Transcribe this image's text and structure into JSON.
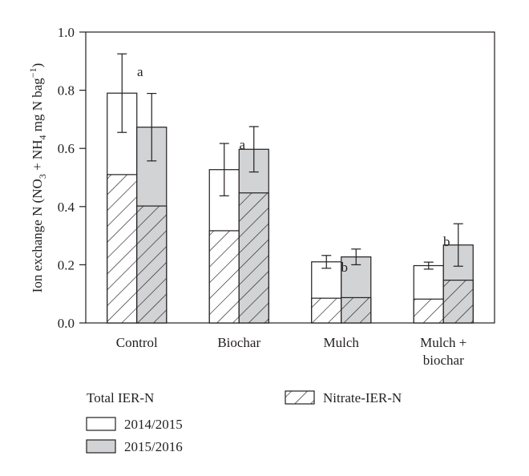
{
  "chart_data": {
    "type": "bar",
    "ylabel_parts": [
      "Ion exchange N (NO",
      "3",
      " + NH",
      "4",
      " mg N bag",
      "−1",
      ")"
    ],
    "ylim": [
      0.0,
      1.0
    ],
    "yticks": [
      "0.0",
      "0.2",
      "0.4",
      "0.6",
      "0.8",
      "1.0"
    ],
    "ytick_values": [
      0.0,
      0.2,
      0.4,
      0.6,
      0.8,
      1.0
    ],
    "categories": [
      [
        "Control"
      ],
      [
        "Biochar"
      ],
      [
        "Mulch"
      ],
      [
        "Mulch +",
        "biochar"
      ]
    ],
    "series": [
      {
        "name": "2014/2015",
        "total": [
          0.79,
          0.527,
          0.21,
          0.197
        ],
        "nitrate": [
          0.51,
          0.317,
          0.085,
          0.082
        ],
        "err": [
          0.135,
          0.09,
          0.022,
          0.012
        ],
        "fill": "#ffffff"
      },
      {
        "name": "2015/2016",
        "total": [
          0.673,
          0.597,
          0.227,
          0.268
        ],
        "nitrate": [
          0.402,
          0.447,
          0.087,
          0.147
        ],
        "err": [
          0.116,
          0.078,
          0.027,
          0.073
        ],
        "fill": "#d1d3d4"
      }
    ],
    "annotations": [
      "a",
      "a",
      "b",
      "b"
    ],
    "legend": {
      "group_title": "Total IER-N",
      "items": [
        "2014/2015",
        "2015/2016"
      ],
      "nitrate_label": "Nitrate-IER-N"
    },
    "grid": false,
    "colors": {
      "ink": "#231f20",
      "gray_fill": "#d1d3d4",
      "white_fill": "#ffffff"
    }
  }
}
